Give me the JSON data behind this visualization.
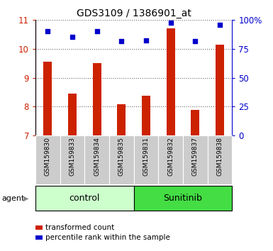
{
  "title": "GDS3109 / 1386901_at",
  "samples": [
    "GSM159830",
    "GSM159833",
    "GSM159834",
    "GSM159835",
    "GSM159831",
    "GSM159832",
    "GSM159837",
    "GSM159838"
  ],
  "red_values": [
    9.55,
    8.45,
    9.52,
    8.08,
    8.38,
    10.72,
    7.9,
    10.15
  ],
  "blue_values": [
    10.62,
    10.42,
    10.62,
    10.27,
    10.3,
    10.9,
    10.27,
    10.83
  ],
  "ylim_left": [
    7,
    11
  ],
  "ylim_right": [
    0,
    100
  ],
  "yticks_left": [
    7,
    8,
    9,
    10,
    11
  ],
  "yticks_right": [
    0,
    25,
    50,
    75,
    100
  ],
  "ytick_labels_right": [
    "0",
    "25",
    "50",
    "75",
    "100%"
  ],
  "bar_color": "#cc2200",
  "dot_color": "#0000cc",
  "control_label": "control",
  "sunitinib_label": "Sunitinib",
  "agent_label": "agent",
  "legend_red": "transformed count",
  "legend_blue": "percentile rank within the sample",
  "control_bg": "#ccffcc",
  "sunitinib_bg": "#44dd44",
  "sample_bg": "#cccccc",
  "bar_bottom": 7,
  "n_control": 4,
  "n_sunitinib": 4
}
